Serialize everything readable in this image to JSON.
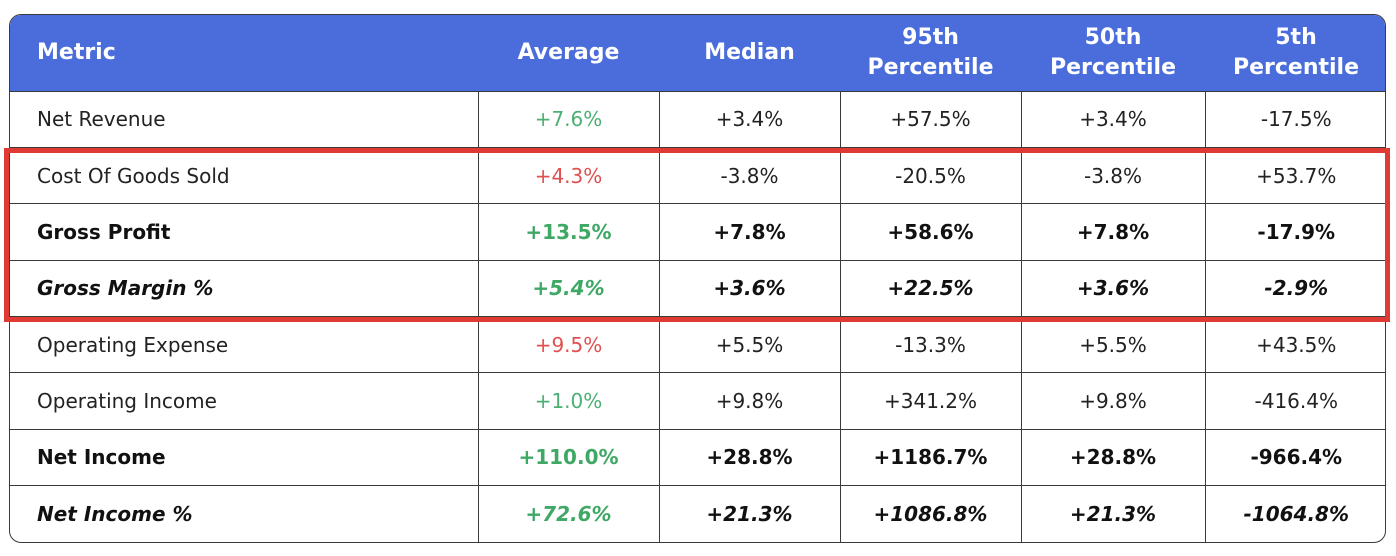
{
  "chart_data": {
    "type": "table",
    "columns": [
      "Metric",
      "Average",
      "Median",
      "95th Percentile",
      "50th Percentile",
      "5th Percentile"
    ],
    "rows": [
      {
        "metric": "Net Revenue",
        "style": "normal",
        "avg_color": "pos",
        "values": [
          "+7.6%",
          "+3.4%",
          "+57.5%",
          "+3.4%",
          "-17.5%"
        ]
      },
      {
        "metric": "Cost Of Goods Sold",
        "style": "normal",
        "avg_color": "neg",
        "values": [
          "+4.3%",
          "-3.8%",
          "-20.5%",
          "-3.8%",
          "+53.7%"
        ]
      },
      {
        "metric": "Gross Profit",
        "style": "bold",
        "avg_color": "pos",
        "values": [
          "+13.5%",
          "+7.8%",
          "+58.6%",
          "+7.8%",
          "-17.9%"
        ]
      },
      {
        "metric": "Gross Margin %",
        "style": "bolditalic",
        "avg_color": "pos",
        "values": [
          "+5.4%",
          "+3.6%",
          "+22.5%",
          "+3.6%",
          "-2.9%"
        ]
      },
      {
        "metric": "Operating Expense",
        "style": "normal",
        "avg_color": "neg",
        "values": [
          "+9.5%",
          "+5.5%",
          "-13.3%",
          "+5.5%",
          "+43.5%"
        ]
      },
      {
        "metric": "Operating Income",
        "style": "normal",
        "avg_color": "pos",
        "values": [
          "+1.0%",
          "+9.8%",
          "+341.2%",
          "+9.8%",
          "-416.4%"
        ]
      },
      {
        "metric": "Net Income",
        "style": "bold",
        "avg_color": "pos",
        "values": [
          "+110.0%",
          "+28.8%",
          "+1186.7%",
          "+28.8%",
          "-966.4%"
        ]
      },
      {
        "metric": "Net Income %",
        "style": "bolditalic",
        "avg_color": "pos",
        "values": [
          "+72.6%",
          "+21.3%",
          "+1086.8%",
          "+21.3%",
          "-1064.8%"
        ]
      }
    ],
    "highlighted_rows": [
      "Cost Of Goods Sold",
      "Gross Profit",
      "Gross Margin %"
    ]
  },
  "colors": {
    "header_bg": "#4a6ddb",
    "positive": "#4caf73",
    "negative": "#e05050",
    "highlight_border": "#e03a35"
  }
}
